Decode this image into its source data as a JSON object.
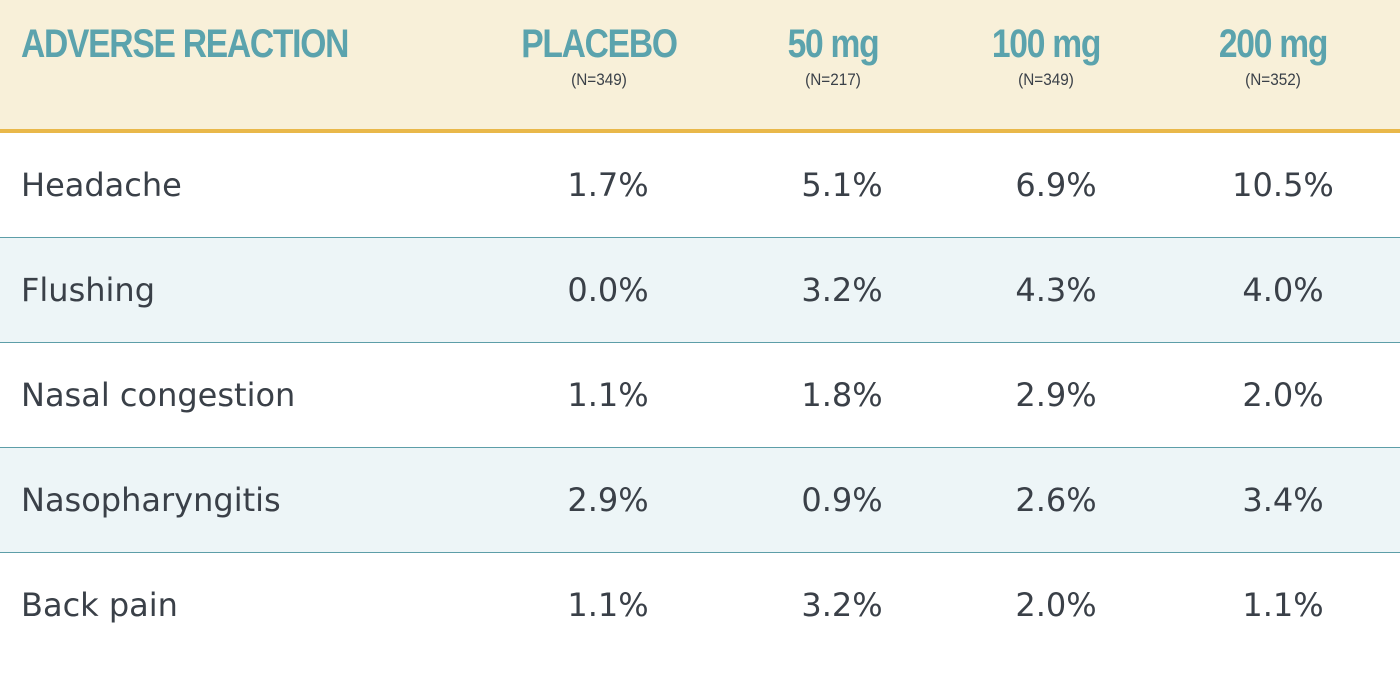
{
  "table": {
    "header": {
      "reaction": "ADVERSE REACTION",
      "columns": [
        {
          "title": "PLACEBO",
          "n": "(N=349)"
        },
        {
          "title": "50 mg",
          "n": "(N=217)"
        },
        {
          "title": "100 mg",
          "n": "(N=349)"
        },
        {
          "title": "200 mg",
          "n": "(N=352)"
        }
      ]
    },
    "rows": [
      {
        "label": "Headache",
        "values": [
          "1.7%",
          "5.1%",
          "6.9%",
          "10.5%"
        ]
      },
      {
        "label": "Flushing",
        "values": [
          "0.0%",
          "3.2%",
          "4.3%",
          "4.0%"
        ]
      },
      {
        "label": "Nasal congestion",
        "values": [
          "1.1%",
          "1.8%",
          "2.9%",
          "2.0%"
        ]
      },
      {
        "label": "Nasopharyngitis",
        "values": [
          "2.9%",
          "0.9%",
          "2.6%",
          "3.4%"
        ]
      },
      {
        "label": "Back pain",
        "values": [
          "1.1%",
          "3.2%",
          "2.0%",
          "1.1%"
        ]
      }
    ]
  },
  "colors": {
    "header_bg": "#f8f0d9",
    "header_rule": "#e9b84a",
    "header_text": "#5ba3ad",
    "alt_row_bg": "#edf5f7",
    "row_rule": "#5d9ea8",
    "body_text": "#3a4048"
  }
}
